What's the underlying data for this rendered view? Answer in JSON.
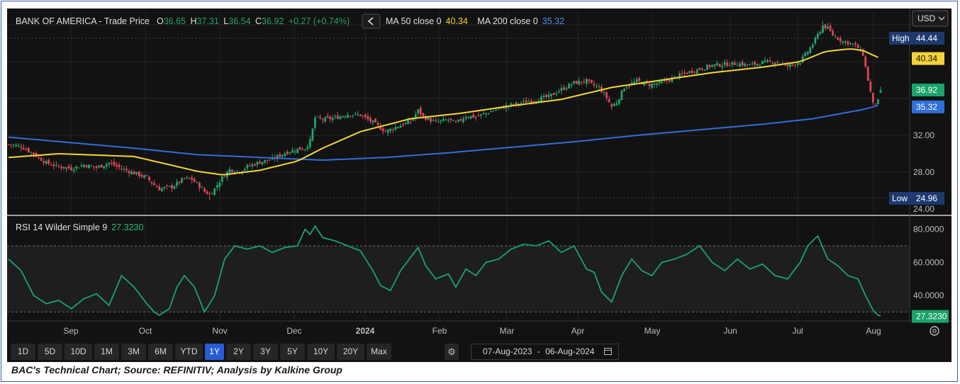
{
  "header": {
    "title": "BANK OF AMERICA - Trade Price",
    "o_label": "O",
    "o_value": "36.65",
    "h_label": "H",
    "h_value": "37.31",
    "l_label": "L",
    "l_value": "36.54",
    "c_label": "C",
    "c_value": "36.92",
    "change": "+0.27 (+0.74%)",
    "collapse_icon": "chevron-left-icon",
    "ma50_label": "MA 50 close 0",
    "ma50_value": "40.34",
    "ma200_label": "MA 200 close 0",
    "ma200_value": "35.32"
  },
  "currency": "USD",
  "price_labels": {
    "high_label": "High",
    "high_value": "44.44",
    "low_label": "Low",
    "low_value": "24.96",
    "ma50": "40.34",
    "last": "36.92",
    "ma200": "35.32"
  },
  "rsi": {
    "label": "RSI 14 Wilder Simple 9",
    "value": "27.3230",
    "ticks": [
      "80.0000",
      "60.0000",
      "40.0000"
    ]
  },
  "range_buttons": [
    "1D",
    "5D",
    "10D",
    "1M",
    "3M",
    "6M",
    "YTD",
    "1Y",
    "2Y",
    "3Y",
    "5Y",
    "10Y",
    "20Y",
    "Max"
  ],
  "active_range": "1Y",
  "date_range": {
    "from": "07-Aug-2023",
    "separator": "-",
    "to": "06-Aug-2024"
  },
  "caption": "BAC's Technical Chart; Source: REFINITIV; Analysis by Kalkine Group",
  "colors": {
    "up": "#26a269",
    "down": "#e0455a",
    "ma50": "#f2d43a",
    "ma200": "#2f6fd8",
    "rsi": "#1aa36b",
    "background": "#121212"
  },
  "chart_data": [
    {
      "type": "candlestick",
      "title": "BANK OF AMERICA - Trade Price",
      "x_tick_labels": [
        "Sep",
        "Oct",
        "Nov",
        "Dec",
        "2024",
        "Feb",
        "Mar",
        "Apr",
        "May",
        "Jun",
        "Jul",
        "Aug"
      ],
      "y_tick_labels": [
        "32.00",
        "28.00",
        "24.00"
      ],
      "ylim": [
        24,
        45
      ],
      "close_anchors": [
        [
          0,
          31.0
        ],
        [
          5,
          30.8
        ],
        [
          10,
          30.0
        ],
        [
          15,
          29.0
        ],
        [
          20,
          28.6
        ],
        [
          25,
          28.4
        ],
        [
          30,
          28.8
        ],
        [
          35,
          28.5
        ],
        [
          40,
          29.0
        ],
        [
          45,
          28.4
        ],
        [
          50,
          27.9
        ],
        [
          55,
          27.4
        ],
        [
          58,
          26.6
        ],
        [
          60,
          26.2
        ],
        [
          65,
          26.4
        ],
        [
          70,
          27.3
        ],
        [
          73,
          27.2
        ],
        [
          76,
          26.5
        ],
        [
          78,
          25.9
        ],
        [
          80,
          25.6
        ],
        [
          82,
          26.2
        ],
        [
          85,
          27.4
        ],
        [
          88,
          28.3
        ],
        [
          92,
          28.1
        ],
        [
          95,
          28.6
        ],
        [
          100,
          29.1
        ],
        [
          105,
          29.4
        ],
        [
          110,
          30.1
        ],
        [
          115,
          30.5
        ],
        [
          118,
          30.6
        ],
        [
          120,
          31.4
        ],
        [
          122,
          33.9
        ],
        [
          125,
          33.7
        ],
        [
          130,
          33.9
        ],
        [
          135,
          34.3
        ],
        [
          140,
          34.2
        ],
        [
          145,
          33.4
        ],
        [
          148,
          32.8
        ],
        [
          150,
          32.4
        ],
        [
          155,
          33.0
        ],
        [
          160,
          33.5
        ],
        [
          163,
          34.7
        ],
        [
          165,
          34.0
        ],
        [
          170,
          33.4
        ],
        [
          175,
          33.7
        ],
        [
          178,
          33.3
        ],
        [
          182,
          34.1
        ],
        [
          186,
          34.0
        ],
        [
          190,
          34.4
        ],
        [
          195,
          34.9
        ],
        [
          200,
          35.3
        ],
        [
          205,
          35.6
        ],
        [
          210,
          35.9
        ],
        [
          215,
          36.2
        ],
        [
          220,
          37.0
        ],
        [
          225,
          37.7
        ],
        [
          230,
          37.9
        ],
        [
          232,
          37.5
        ],
        [
          235,
          37.2
        ],
        [
          238,
          36.1
        ],
        [
          240,
          35.1
        ],
        [
          242,
          35.6
        ],
        [
          245,
          37.2
        ],
        [
          250,
          37.9
        ],
        [
          255,
          37.5
        ],
        [
          260,
          37.7
        ],
        [
          265,
          38.3
        ],
        [
          270,
          38.8
        ],
        [
          275,
          39.2
        ],
        [
          280,
          39.6
        ],
        [
          285,
          39.7
        ],
        [
          290,
          39.8
        ],
        [
          295,
          39.6
        ],
        [
          300,
          39.9
        ],
        [
          305,
          40.0
        ],
        [
          310,
          39.5
        ],
        [
          315,
          40.0
        ],
        [
          318,
          41.1
        ],
        [
          320,
          41.9
        ],
        [
          322,
          42.9
        ],
        [
          324,
          43.9
        ],
        [
          326,
          43.6
        ],
        [
          328,
          42.9
        ],
        [
          332,
          42.2
        ],
        [
          336,
          41.9
        ],
        [
          338,
          41.5
        ],
        [
          340,
          40.8
        ],
        [
          342,
          38.0
        ],
        [
          344,
          35.4
        ],
        [
          346,
          35.7
        ],
        [
          347,
          36.9
        ]
      ],
      "ma50": [
        [
          0,
          29.6
        ],
        [
          20,
          30.0
        ],
        [
          50,
          29.7
        ],
        [
          75,
          28.1
        ],
        [
          85,
          27.7
        ],
        [
          100,
          28.2
        ],
        [
          115,
          29.2
        ],
        [
          125,
          30.6
        ],
        [
          140,
          32.4
        ],
        [
          160,
          33.8
        ],
        [
          180,
          34.4
        ],
        [
          200,
          35.2
        ],
        [
          220,
          35.9
        ],
        [
          240,
          37.2
        ],
        [
          260,
          38.0
        ],
        [
          280,
          38.8
        ],
        [
          300,
          39.4
        ],
        [
          315,
          40.0
        ],
        [
          325,
          41.1
        ],
        [
          335,
          41.4
        ],
        [
          340,
          41.2
        ],
        [
          347,
          40.34
        ]
      ],
      "ma200": [
        [
          0,
          31.8
        ],
        [
          25,
          31.2
        ],
        [
          50,
          30.6
        ],
        [
          75,
          29.9
        ],
        [
          100,
          29.6
        ],
        [
          125,
          29.3
        ],
        [
          150,
          29.6
        ],
        [
          175,
          30.1
        ],
        [
          200,
          30.7
        ],
        [
          225,
          31.3
        ],
        [
          250,
          32.0
        ],
        [
          275,
          32.6
        ],
        [
          300,
          33.2
        ],
        [
          320,
          33.8
        ],
        [
          340,
          34.8
        ],
        [
          347,
          35.32
        ]
      ],
      "high": 44.44,
      "low": 24.96,
      "last": {
        "open": 36.65,
        "high": 37.31,
        "low": 36.54,
        "close": 36.92
      }
    },
    {
      "type": "line",
      "title": "RSI 14 Wilder Simple 9",
      "ylim": [
        25,
        85
      ],
      "y_tick_labels": [
        "80.0000",
        "60.0000",
        "40.0000"
      ],
      "bands": [
        70,
        30
      ],
      "rsi_anchors": [
        [
          0,
          62
        ],
        [
          5,
          55
        ],
        [
          10,
          40
        ],
        [
          15,
          35
        ],
        [
          20,
          37
        ],
        [
          25,
          32
        ],
        [
          30,
          38
        ],
        [
          35,
          41
        ],
        [
          40,
          34
        ],
        [
          45,
          52
        ],
        [
          50,
          45
        ],
        [
          55,
          35
        ],
        [
          58,
          30
        ],
        [
          60,
          28
        ],
        [
          64,
          32
        ],
        [
          67,
          45
        ],
        [
          70,
          52
        ],
        [
          74,
          45
        ],
        [
          78,
          30
        ],
        [
          82,
          40
        ],
        [
          86,
          62
        ],
        [
          90,
          70
        ],
        [
          95,
          68
        ],
        [
          100,
          70
        ],
        [
          105,
          66
        ],
        [
          110,
          69
        ],
        [
          115,
          70
        ],
        [
          118,
          80
        ],
        [
          120,
          77
        ],
        [
          122,
          82
        ],
        [
          125,
          75
        ],
        [
          130,
          73
        ],
        [
          135,
          70
        ],
        [
          140,
          67
        ],
        [
          145,
          55
        ],
        [
          148,
          46
        ],
        [
          152,
          43
        ],
        [
          156,
          55
        ],
        [
          160,
          63
        ],
        [
          163,
          69
        ],
        [
          166,
          58
        ],
        [
          170,
          50
        ],
        [
          175,
          53
        ],
        [
          178,
          45
        ],
        [
          182,
          56
        ],
        [
          186,
          52
        ],
        [
          190,
          60
        ],
        [
          195,
          62
        ],
        [
          200,
          68
        ],
        [
          205,
          71
        ],
        [
          210,
          70
        ],
        [
          215,
          73
        ],
        [
          220,
          66
        ],
        [
          225,
          70
        ],
        [
          230,
          56
        ],
        [
          233,
          54
        ],
        [
          236,
          42
        ],
        [
          240,
          36
        ],
        [
          244,
          52
        ],
        [
          248,
          62
        ],
        [
          252,
          55
        ],
        [
          256,
          52
        ],
        [
          260,
          60
        ],
        [
          265,
          62
        ],
        [
          270,
          65
        ],
        [
          275,
          70
        ],
        [
          280,
          60
        ],
        [
          285,
          55
        ],
        [
          290,
          62
        ],
        [
          295,
          56
        ],
        [
          300,
          59
        ],
        [
          305,
          52
        ],
        [
          310,
          50
        ],
        [
          315,
          60
        ],
        [
          318,
          70
        ],
        [
          322,
          76
        ],
        [
          326,
          62
        ],
        [
          330,
          58
        ],
        [
          334,
          52
        ],
        [
          338,
          50
        ],
        [
          341,
          40
        ],
        [
          344,
          31
        ],
        [
          346,
          28
        ],
        [
          348,
          27.32
        ]
      ],
      "last": 27.323
    }
  ]
}
